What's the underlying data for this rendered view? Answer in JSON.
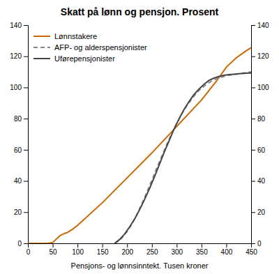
{
  "chart_data": {
    "type": "line",
    "title": "Skatt på lønn og pensjon. Prosent",
    "xlabel": "Pensjons- og lønnsinntekt. Tusen kroner",
    "xlim": [
      0,
      450
    ],
    "ylim": [
      0,
      140
    ],
    "xticks": [
      0,
      50,
      100,
      150,
      200,
      250,
      300,
      350,
      400,
      450
    ],
    "yticks": [
      0,
      20,
      40,
      60,
      80,
      100,
      120,
      140
    ],
    "y2lim": [
      0,
      140
    ],
    "y2ticks": [
      0,
      20,
      40,
      60,
      80,
      100,
      120,
      140
    ],
    "grid": false,
    "legend": "upper left",
    "series": [
      {
        "name": "Lønnstakere",
        "color": "#CC6600",
        "line_style": "solid",
        "x": [
          0,
          40,
          50,
          65,
          75,
          80,
          90,
          100,
          150,
          200,
          250,
          300,
          350,
          380,
          400,
          420,
          440,
          450
        ],
        "values": [
          0,
          0,
          0.5,
          5.0,
          6.5,
          7.0,
          9.0,
          11.5,
          26.0,
          42.0,
          58.0,
          75.0,
          92.0,
          104.0,
          113.0,
          119.0,
          123.5,
          125.5
        ]
      },
      {
        "name": "AFP- og alderspensjonister",
        "color": "#888888",
        "line_style": "dashed",
        "x": [
          175,
          180,
          190,
          200,
          210,
          220,
          230,
          240,
          250,
          260,
          270,
          280,
          290,
          300,
          310,
          320,
          330,
          340,
          350,
          360,
          370,
          380,
          390,
          400,
          410,
          420,
          430,
          440,
          450
        ],
        "values": [
          0,
          0.8,
          3.5,
          7.5,
          12.5,
          18.5,
          25.5,
          33.0,
          40.5,
          48.5,
          56.0,
          63.5,
          70.5,
          77.0,
          83.0,
          88.0,
          92.5,
          96.5,
          99.5,
          102.0,
          104.0,
          105.5,
          106.5,
          107.5,
          108.0,
          108.5,
          109.0,
          109.5,
          110.0
        ]
      },
      {
        "name": "Uførepensjonister",
        "color": "#444444",
        "line_style": "solid",
        "x": [
          175,
          185,
          195,
          205,
          215,
          225,
          235,
          245,
          255,
          265,
          275,
          285,
          295,
          305,
          315,
          325,
          335,
          345,
          355,
          365,
          375,
          385,
          395,
          405,
          415,
          425,
          435,
          445,
          450
        ],
        "values": [
          0,
          2.5,
          6.0,
          10.5,
          15.5,
          21.5,
          28.0,
          35.0,
          42.5,
          50.5,
          58.5,
          66.0,
          73.5,
          80.0,
          86.0,
          91.0,
          95.5,
          99.0,
          102.0,
          104.5,
          106.0,
          107.0,
          107.8,
          108.2,
          108.5,
          108.8,
          109.0,
          109.2,
          109.3
        ]
      }
    ]
  }
}
